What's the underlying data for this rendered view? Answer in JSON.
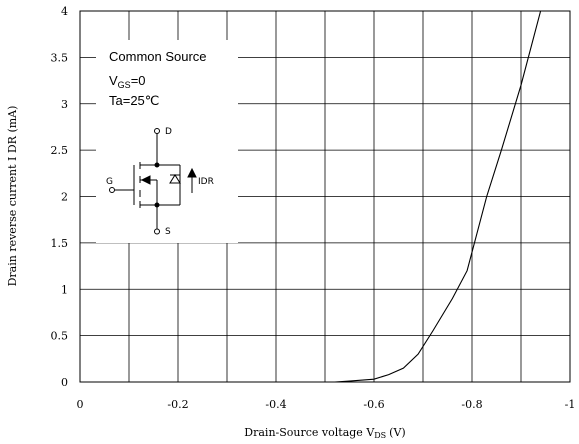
{
  "chart_data": {
    "type": "line",
    "xlabel": "Drain-Source voltage",
    "xlabel_symbol": "V",
    "xlabel_sub": "DS",
    "xlabel_unit": "(V)",
    "ylabel": "Drain reverse current  I  DR (mA)",
    "xlim": [
      0,
      -1
    ],
    "ylim": [
      0,
      4
    ],
    "x_ticks": [
      0,
      -0.1,
      -0.2,
      -0.3,
      -0.4,
      -0.5,
      -0.6,
      -0.7,
      -0.8,
      -0.9,
      -1
    ],
    "x_tick_labels": [
      "0",
      "",
      "-0.2",
      "",
      "-0.4",
      "",
      "-0.6",
      "",
      "-0.8",
      "",
      "-1"
    ],
    "y_ticks": [
      0,
      0.5,
      1,
      1.5,
      2,
      2.5,
      3,
      3.5,
      4
    ],
    "y_tick_labels": [
      "0",
      "0.5",
      "1",
      "1.5",
      "2",
      "2.5",
      "3",
      "3.5",
      "4"
    ],
    "grid": true,
    "series": [
      {
        "x": [
          -0.52,
          -0.55,
          -0.6,
          -0.63,
          -0.66,
          -0.69,
          -0.72,
          -0.76,
          -0.79,
          -0.81,
          -0.83,
          -0.86,
          -0.9,
          -0.94
        ],
        "y": [
          0,
          0.01,
          0.03,
          0.08,
          0.15,
          0.3,
          0.55,
          0.9,
          1.2,
          1.6,
          2.0,
          2.5,
          3.2,
          4.0
        ]
      }
    ],
    "conditions": {
      "line1": "Common Source",
      "line2_symbol": "V",
      "line2_sub": "GS",
      "line2_value": "=0",
      "line3": "Ta=25℃"
    },
    "symbol_labels": {
      "drain": "D",
      "gate": "G",
      "source": "S",
      "current": "IDR"
    }
  }
}
